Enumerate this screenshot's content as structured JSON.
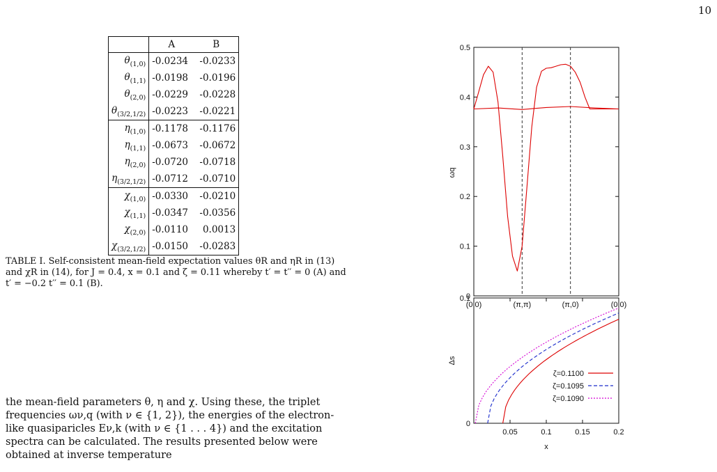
{
  "page_number": "10",
  "table": {
    "header": [
      "",
      "A",
      "B"
    ],
    "groups": [
      [
        {
          "sym": "θ",
          "sub": "(1,0)",
          "a": "-0.0234",
          "b": "-0.0233"
        },
        {
          "sym": "θ",
          "sub": "(1,1)",
          "a": "-0.0198",
          "b": "-0.0196"
        },
        {
          "sym": "θ",
          "sub": "(2,0)",
          "a": "-0.0229",
          "b": "-0.0228"
        },
        {
          "sym": "θ",
          "sub": "(3/2,1/2)",
          "a": "-0.0223",
          "b": "-0.0221"
        }
      ],
      [
        {
          "sym": "η",
          "sub": "(1,0)",
          "a": "-0.1178",
          "b": "-0.1176"
        },
        {
          "sym": "η",
          "sub": "(1,1)",
          "a": "-0.0673",
          "b": "-0.0672"
        },
        {
          "sym": "η",
          "sub": "(2,0)",
          "a": "-0.0720",
          "b": "-0.0718"
        },
        {
          "sym": "η",
          "sub": "(3/2,1/2)",
          "a": "-0.0712",
          "b": "-0.0710"
        }
      ],
      [
        {
          "sym": "χ",
          "sub": "(1,0)",
          "a": "-0.0330",
          "b": "-0.0210"
        },
        {
          "sym": "χ",
          "sub": "(1,1)",
          "a": "-0.0347",
          "b": "-0.0356"
        },
        {
          "sym": "χ",
          "sub": "(2,0)",
          "a": "-0.0110",
          "b": "0.0013"
        },
        {
          "sym": "χ",
          "sub": "(3/2,1/2)",
          "a": "-0.0150",
          "b": "-0.0283"
        }
      ]
    ]
  },
  "caption": "TABLE I. Self-consistent mean-field expectation values θR and ηR in (13) and χR in (14), for J = 0.4, x = 0.1 and ζ = 0.11 whereby t′ = t′′ = 0 (A) and t′ = −0.2 t′′ = 0.1 (B).",
  "body_text": "the mean-field parameters θ, η and χ. Using these, the triplet frequencies ων,q (with ν ∈ {1, 2}), the energies of the electron-like quasiparicles Eν,k (with ν ∈ {1 . . . 4}) and the excitation spectra can be calculated. The results presented below were obtained at inverse temperature",
  "chart_data": [
    {
      "type": "line",
      "ylabel": "ωq",
      "ylim": [
        0,
        0.5
      ],
      "yticks": [
        "0",
        "0.1",
        "0.2",
        "0.3",
        "0.4",
        "0.5"
      ],
      "xticks": [
        "(0,0)",
        "(π,π)",
        "(π,0)",
        "(0,0)"
      ],
      "vlines_at": [
        "(π,π)",
        "(π,0)"
      ],
      "color": "#dd0000",
      "series": [
        {
          "x": [
            0,
            0.1,
            0.2,
            0.3,
            0.4,
            0.5,
            0.6,
            0.7,
            0.8,
            0.9,
            1.0,
            1.1,
            1.2,
            1.3,
            1.4,
            1.5,
            1.6,
            1.7,
            1.8,
            1.9,
            2.0,
            2.1,
            2.2,
            2.3,
            2.4,
            2.5,
            2.6,
            2.7,
            2.8,
            2.9,
            3.0
          ],
          "values": [
            0.376,
            0.41,
            0.445,
            0.462,
            0.45,
            0.39,
            0.28,
            0.16,
            0.08,
            0.05,
            0.1,
            0.22,
            0.34,
            0.42,
            0.452,
            0.458,
            0.459,
            0.462,
            0.465,
            0.466,
            0.462,
            0.45,
            0.43,
            0.4,
            0.376,
            0.376,
            0.376,
            0.376,
            0.376,
            0.376,
            0.376
          ]
        },
        {
          "x": [
            0,
            0.5,
            1.0,
            1.5,
            2.0,
            2.5,
            3.0
          ],
          "values": [
            0.376,
            0.378,
            0.375,
            0.379,
            0.381,
            0.378,
            0.376
          ]
        }
      ]
    },
    {
      "type": "line",
      "xlabel": "x",
      "ylabel": "Δs",
      "xlim": [
        0,
        0.2
      ],
      "ylim": [
        0,
        0.1
      ],
      "xticks": [
        "0.05",
        "0.1",
        "0.15",
        "0.2"
      ],
      "yticks": [
        "0",
        "0.1"
      ],
      "legend": "right",
      "series": [
        {
          "name": "ζ=0.1100",
          "color": "#dd0000",
          "dash": "",
          "x0": 0.04,
          "top": 0.083
        },
        {
          "name": "ζ=0.1095",
          "color": "#1a2bcc",
          "dash": "5,3",
          "x0": 0.019,
          "top": 0.088
        },
        {
          "name": "ζ=0.1090",
          "color": "#d400d4",
          "dash": "2,2",
          "x0": 0.002,
          "top": 0.092
        }
      ]
    }
  ]
}
